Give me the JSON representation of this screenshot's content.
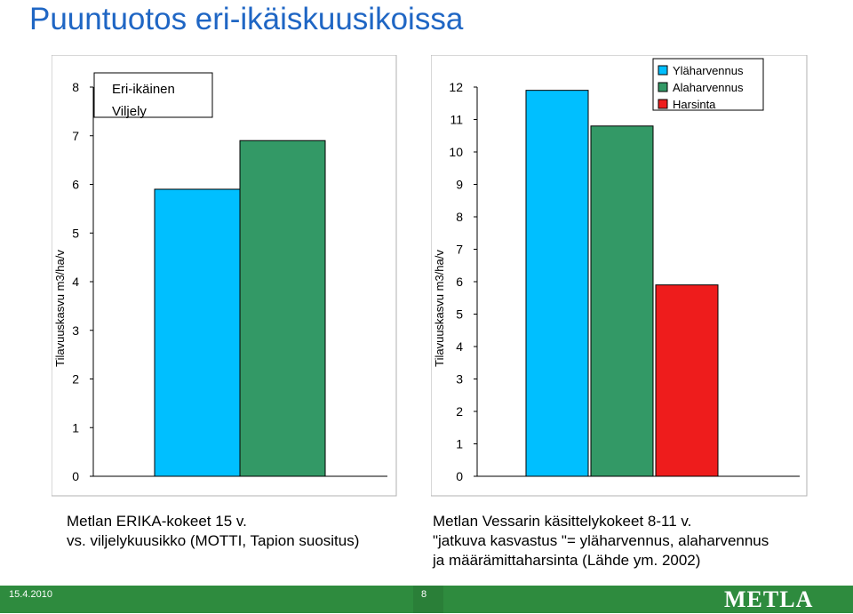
{
  "title": "Puuntuotos eri-ikäiskuusikoissa",
  "colors": {
    "title": "#1f66c4",
    "eri_ikainen": "#00bfff",
    "viljely": "#339966",
    "ylaharvennus": "#00bfff",
    "alaharvennus": "#339966",
    "harsinta": "#ee1c1c",
    "footer": "#2e8b3e"
  },
  "chart_data": [
    {
      "type": "bar",
      "ylabel": "Tilavuuskasvu m3/ha/v",
      "ylim": [
        0,
        8
      ],
      "yticks": [
        "0",
        "1",
        "2",
        "3",
        "4",
        "5",
        "6",
        "7",
        "8"
      ],
      "series": [
        {
          "name": "Eri-ikäinen",
          "values": [
            5.9
          ]
        },
        {
          "name": "Viljely",
          "values": [
            6.9
          ]
        }
      ],
      "legend": "top-left",
      "grid": false
    },
    {
      "type": "bar",
      "ylabel": "Tilavuuskasvu m3/ha/v",
      "ylim": [
        0,
        12
      ],
      "yticks": [
        "0",
        "1",
        "2",
        "3",
        "4",
        "5",
        "6",
        "7",
        "8",
        "9",
        "10",
        "11",
        "12"
      ],
      "series": [
        {
          "name": "Yläharvennus",
          "values": [
            11.9
          ]
        },
        {
          "name": "Alaharvennus",
          "values": [
            10.8
          ]
        },
        {
          "name": "Harsinta",
          "values": [
            5.9
          ]
        }
      ],
      "legend": "top-right",
      "grid": false
    }
  ],
  "captions": {
    "left_line1": "Metlan ERIKA-kokeet 15 v.",
    "left_line2": "vs. viljelykuusikko (MOTTI, Tapion suositus)",
    "right_line1": "Metlan Vessarin käsittelykokeet 8-11 v.",
    "right_line2": "\"jatkuva kasvastus \"= yläharvennus, alaharvennus",
    "right_line3": "ja määrämittaharsinta (Lähde ym. 2002)"
  },
  "footer": {
    "date": "15.4.2010",
    "page": "8",
    "logo": "METLA"
  }
}
